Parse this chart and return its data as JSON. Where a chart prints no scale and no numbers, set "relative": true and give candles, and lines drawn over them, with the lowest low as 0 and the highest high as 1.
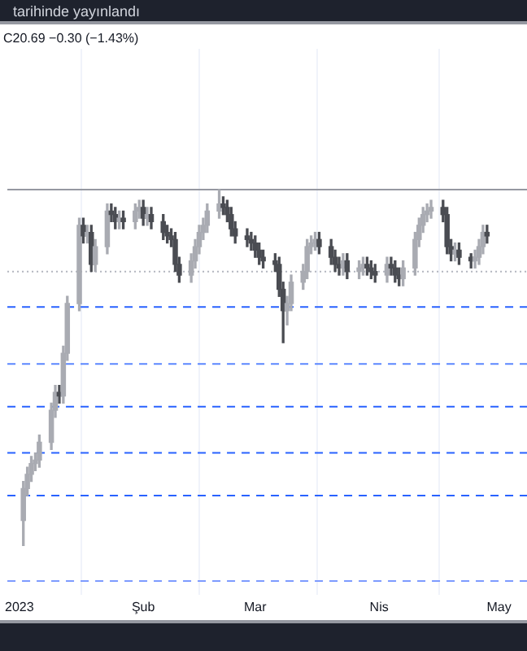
{
  "chart_data": {
    "type": "candlestick",
    "relative": true,
    "title": "tarihinde yayınlandı",
    "subtitle": "C20.69 −0.30 (−1.43%)",
    "x": [
      "2023-01-02",
      "2023-01-03",
      "2023-01-04",
      "2023-01-05",
      "2023-01-06",
      "2023-01-09",
      "2023-01-10",
      "2023-01-11",
      "2023-01-12",
      "2023-01-13",
      "2023-01-16",
      "2023-01-17",
      "2023-01-18",
      "2023-01-19",
      "2023-01-20",
      "2023-01-23",
      "2023-01-24",
      "2023-01-25",
      "2023-01-26",
      "2023-01-27",
      "2023-01-30",
      "2023-01-31",
      "2023-02-01",
      "2023-02-02",
      "2023-02-03",
      "2023-02-06",
      "2023-02-07",
      "2023-02-08",
      "2023-02-09",
      "2023-02-10",
      "2023-02-13",
      "2023-02-14",
      "2023-02-15",
      "2023-02-16",
      "2023-02-17",
      "2023-02-20",
      "2023-02-21",
      "2023-02-22",
      "2023-02-23",
      "2023-02-24",
      "2023-02-27",
      "2023-02-28",
      "2023-03-01",
      "2023-03-02",
      "2023-03-03",
      "2023-03-06",
      "2023-03-07",
      "2023-03-08",
      "2023-03-09",
      "2023-03-10",
      "2023-03-13",
      "2023-03-14",
      "2023-03-15",
      "2023-03-16",
      "2023-03-17",
      "2023-03-20",
      "2023-03-21",
      "2023-03-22",
      "2023-03-23",
      "2023-03-24",
      "2023-03-27",
      "2023-03-28",
      "2023-03-29",
      "2023-03-30",
      "2023-03-31",
      "2023-04-03",
      "2023-04-04",
      "2023-04-05",
      "2023-04-06",
      "2023-04-07",
      "2023-04-10",
      "2023-04-11",
      "2023-04-12",
      "2023-04-13",
      "2023-04-14",
      "2023-04-17",
      "2023-04-18",
      "2023-04-19",
      "2023-04-20",
      "2023-04-21",
      "2023-04-24",
      "2023-04-25",
      "2023-04-26",
      "2023-04-27",
      "2023-04-28"
    ],
    "ohlc": [
      [
        0.07,
        0.18,
        0,
        0.16
      ],
      [
        0.16,
        0.22,
        0.14,
        0.2
      ],
      [
        0.2,
        0.25,
        0.18,
        0.23
      ],
      [
        0.23,
        0.26,
        0.21,
        0.24
      ],
      [
        0.24,
        0.31,
        0.22,
        0.29
      ],
      [
        0.29,
        0.4,
        0.27,
        0.38
      ],
      [
        0.38,
        0.45,
        0.36,
        0.43
      ],
      [
        0.43,
        0.45,
        0.4,
        0.42
      ],
      [
        0.42,
        0.56,
        0.4,
        0.54
      ],
      [
        0.54,
        0.7,
        0.52,
        0.68
      ],
      [
        0.68,
        0.92,
        0.66,
        0.9
      ],
      [
        0.9,
        0.92,
        0.85,
        0.87
      ],
      [
        0.87,
        0.9,
        0.85,
        0.88
      ],
      [
        0.88,
        0.9,
        0.77,
        0.79
      ],
      [
        0.79,
        0.86,
        0.77,
        0.84
      ],
      [
        0.84,
        0.96,
        0.82,
        0.94
      ],
      [
        0.94,
        0.96,
        0.91,
        0.93
      ],
      [
        0.93,
        0.95,
        0.89,
        0.91
      ],
      [
        0.91,
        0.94,
        0.89,
        0.92
      ],
      [
        0.92,
        0.94,
        0.89,
        0.91
      ],
      [
        0.91,
        0.96,
        0.89,
        0.94
      ],
      [
        0.94,
        0.97,
        0.92,
        0.95
      ],
      [
        0.95,
        0.97,
        0.9,
        0.92
      ],
      [
        0.92,
        0.95,
        0.9,
        0.93
      ],
      [
        0.93,
        0.95,
        0.89,
        0.91
      ],
      [
        0.91,
        0.93,
        0.86,
        0.88
      ],
      [
        0.88,
        0.9,
        0.85,
        0.87
      ],
      [
        0.87,
        0.89,
        0.84,
        0.86
      ],
      [
        0.86,
        0.88,
        0.77,
        0.79
      ],
      [
        0.79,
        0.81,
        0.74,
        0.76
      ],
      [
        0.76,
        0.82,
        0.74,
        0.8
      ],
      [
        0.8,
        0.86,
        0.78,
        0.84
      ],
      [
        0.84,
        0.9,
        0.82,
        0.88
      ],
      [
        0.88,
        0.92,
        0.86,
        0.9
      ],
      [
        0.9,
        0.96,
        0.88,
        0.94
      ],
      [
        0.94,
        1,
        0.92,
        0.96
      ],
      [
        0.96,
        0.98,
        0.93,
        0.95
      ],
      [
        0.95,
        0.97,
        0.91,
        0.93
      ],
      [
        0.93,
        0.95,
        0.87,
        0.89
      ],
      [
        0.89,
        0.91,
        0.85,
        0.87
      ],
      [
        0.87,
        0.89,
        0.84,
        0.86
      ],
      [
        0.86,
        0.88,
        0.83,
        0.85
      ],
      [
        0.85,
        0.87,
        0.81,
        0.83
      ],
      [
        0.83,
        0.85,
        0.79,
        0.81
      ],
      [
        0.81,
        0.83,
        0.78,
        0.8
      ],
      [
        0.8,
        0.82,
        0.77,
        0.79
      ],
      [
        0.79,
        0.81,
        0.7,
        0.72
      ],
      [
        0.72,
        0.74,
        0.57,
        0.66
      ],
      [
        0.66,
        0.7,
        0.62,
        0.68
      ],
      [
        0.68,
        0.76,
        0.66,
        0.74
      ],
      [
        0.74,
        0.79,
        0.72,
        0.77
      ],
      [
        0.77,
        0.86,
        0.75,
        0.84
      ],
      [
        0.84,
        0.87,
        0.82,
        0.85
      ],
      [
        0.85,
        0.88,
        0.83,
        0.86
      ],
      [
        0.86,
        0.88,
        0.82,
        0.84
      ],
      [
        0.84,
        0.86,
        0.79,
        0.81
      ],
      [
        0.81,
        0.83,
        0.77,
        0.79
      ],
      [
        0.79,
        0.81,
        0.76,
        0.78
      ],
      [
        0.78,
        0.82,
        0.76,
        0.8
      ],
      [
        0.8,
        0.82,
        0.75,
        0.77
      ],
      [
        0.77,
        0.8,
        0.75,
        0.78
      ],
      [
        0.78,
        0.81,
        0.76,
        0.79
      ],
      [
        0.79,
        0.81,
        0.76,
        0.78
      ],
      [
        0.78,
        0.8,
        0.75,
        0.77
      ],
      [
        0.77,
        0.79,
        0.74,
        0.76
      ],
      [
        0.76,
        0.81,
        0.74,
        0.79
      ],
      [
        0.79,
        0.81,
        0.76,
        0.78
      ],
      [
        0.78,
        0.8,
        0.74,
        0.76
      ],
      [
        0.76,
        0.78,
        0.73,
        0.75
      ],
      [
        0.75,
        0.8,
        0.73,
        0.78
      ],
      [
        0.78,
        0.88,
        0.76,
        0.86
      ],
      [
        0.86,
        0.92,
        0.84,
        0.9
      ],
      [
        0.9,
        0.95,
        0.88,
        0.93
      ],
      [
        0.93,
        0.96,
        0.91,
        0.94
      ],
      [
        0.94,
        0.97,
        0.92,
        0.95
      ],
      [
        0.95,
        0.97,
        0.91,
        0.93
      ],
      [
        0.93,
        0.95,
        0.82,
        0.84
      ],
      [
        0.84,
        0.86,
        0.8,
        0.82
      ],
      [
        0.82,
        0.85,
        0.8,
        0.83
      ],
      [
        0.83,
        0.85,
        0.79,
        0.81
      ],
      [
        0.81,
        0.82,
        0.78,
        0.8
      ],
      [
        0.8,
        0.83,
        0.78,
        0.81
      ],
      [
        0.81,
        0.86,
        0.79,
        0.84
      ],
      [
        0.84,
        0.9,
        0.82,
        0.88
      ],
      [
        0.88,
        0.9,
        0.85,
        0.87
      ]
    ],
    "colors": [
      "#a9abb2",
      "#a9abb2",
      "#a9abb2",
      "#a9abb2",
      "#a9abb2",
      "#a9abb2",
      "#a9abb2",
      "#4a4c52",
      "#a9abb2",
      "#a9abb2",
      "#a9abb2",
      "#4a4c52",
      "#a9abb2",
      "#4a4c52",
      "#a9abb2",
      "#a9abb2",
      "#4a4c52",
      "#4a4c52",
      "#a9abb2",
      "#4a4c52",
      "#a9abb2",
      "#a9abb2",
      "#4a4c52",
      "#a9abb2",
      "#4a4c52",
      "#4a4c52",
      "#4a4c52",
      "#4a4c52",
      "#4a4c52",
      "#4a4c52",
      "#a9abb2",
      "#a9abb2",
      "#a9abb2",
      "#a9abb2",
      "#a9abb2",
      "#a9abb2",
      "#4a4c52",
      "#4a4c52",
      "#4a4c52",
      "#4a4c52",
      "#4a4c52",
      "#4a4c52",
      "#4a4c52",
      "#4a4c52",
      "#4a4c52",
      "#4a4c52",
      "#4a4c52",
      "#4a4c52",
      "#a9abb2",
      "#a9abb2",
      "#a9abb2",
      "#a9abb2",
      "#a9abb2",
      "#a9abb2",
      "#4a4c52",
      "#4a4c52",
      "#4a4c52",
      "#4a4c52",
      "#a9abb2",
      "#4a4c52",
      "#a9abb2",
      "#a9abb2",
      "#4a4c52",
      "#4a4c52",
      "#4a4c52",
      "#a9abb2",
      "#4a4c52",
      "#4a4c52",
      "#4a4c52",
      "#a9abb2",
      "#a9abb2",
      "#a9abb2",
      "#a9abb2",
      "#a9abb2",
      "#a9abb2",
      "#4a4c52",
      "#4a4c52",
      "#4a4c52",
      "#a9abb2",
      "#4a4c52",
      "#4a4c52",
      "#a9abb2",
      "#a9abb2",
      "#a9abb2",
      "#4a4c52"
    ],
    "xlim": [
      "2022-12-29",
      "2023-05-08"
    ],
    "xticks": [
      {
        "value": "2023-01-01",
        "label": "2023"
      },
      {
        "value": "2023-02-01",
        "label": "Şub"
      },
      {
        "value": "2023-03-01",
        "label": "Mar"
      },
      {
        "value": "2023-04-01",
        "label": "Nis"
      },
      {
        "value": "2023-05-01",
        "label": "May"
      }
    ],
    "grid": "x",
    "ref_lines": [
      {
        "axis": "y",
        "value": 1,
        "color": "#9598a1",
        "line_style": "solid"
      },
      {
        "axis": "y",
        "value": 0.77,
        "color": "#b2b5be",
        "line_style": "dotted"
      },
      {
        "axis": "y",
        "value": 0.67,
        "color": "#2962ff",
        "line_style": "dashed"
      },
      {
        "axis": "y",
        "value": 0.51,
        "color": "#5b87ff",
        "line_style": "dashed"
      },
      {
        "axis": "y",
        "value": 0.39,
        "color": "#2962ff",
        "line_style": "dashed"
      },
      {
        "axis": "y",
        "value": 0.26,
        "color": "#2962ff",
        "line_style": "dashed"
      },
      {
        "axis": "y",
        "value": 0.14,
        "color": "#2962ff",
        "line_style": "dashed"
      },
      {
        "axis": "y",
        "value": -0.1,
        "color": "#7d9bff",
        "line_style": "dashed"
      }
    ]
  }
}
